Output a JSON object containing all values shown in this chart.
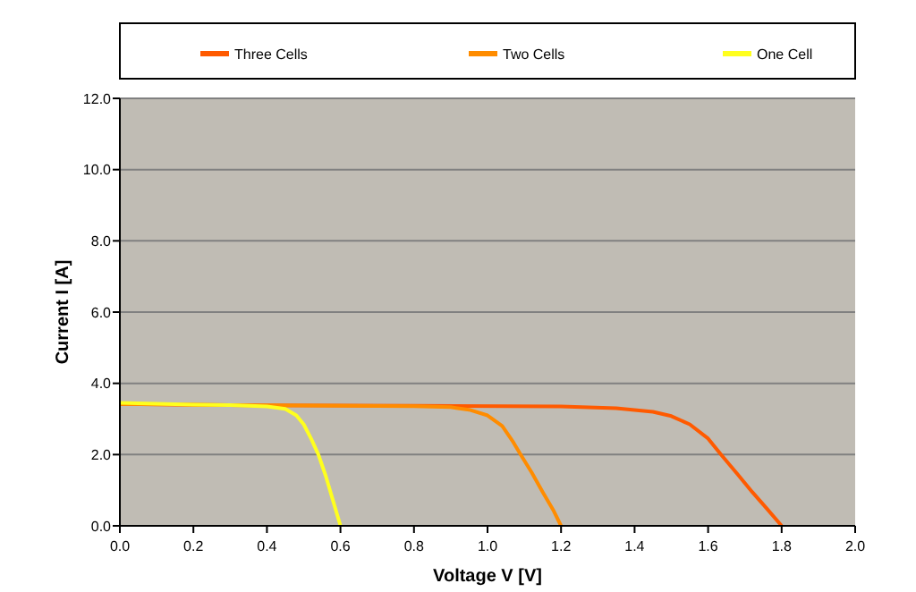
{
  "chart_data": {
    "type": "line",
    "xlabel": "Voltage V  [V]",
    "ylabel": "Current I  [A]",
    "xlim": [
      0,
      2
    ],
    "ylim": [
      0,
      12
    ],
    "xticks": [
      {
        "value": 0,
        "label": "0.0"
      },
      {
        "value": 0.2,
        "label": "0.2"
      },
      {
        "value": 0.4,
        "label": "0.4"
      },
      {
        "value": 0.6,
        "label": "0.6"
      },
      {
        "value": 0.8,
        "label": "0.8"
      },
      {
        "value": 1,
        "label": "1.0"
      },
      {
        "value": 1.2,
        "label": "1.2"
      },
      {
        "value": 1.4,
        "label": "1.4"
      },
      {
        "value": 1.6,
        "label": "1.6"
      },
      {
        "value": 1.8,
        "label": "1.8"
      },
      {
        "value": 2,
        "label": "2.0"
      }
    ],
    "yticks": [
      {
        "value": 0,
        "label": "0.0"
      },
      {
        "value": 2,
        "label": "2.0"
      },
      {
        "value": 4,
        "label": "4.0"
      },
      {
        "value": 6,
        "label": "6.0"
      },
      {
        "value": 8,
        "label": "8.0"
      },
      {
        "value": 10,
        "label": "10.0"
      },
      {
        "value": 12,
        "label": "12.0"
      }
    ],
    "grid": "y",
    "legend": "top",
    "marker": "none",
    "line_style": "solid",
    "series": [
      {
        "name": "Three Cells",
        "color": "#ff5a00",
        "x": [
          0,
          0.4,
          0.8,
          1.2,
          1.35,
          1.45,
          1.5,
          1.55,
          1.6,
          1.635,
          1.68,
          1.72,
          1.76,
          1.8
        ],
        "values": [
          3.42,
          3.38,
          3.37,
          3.35,
          3.3,
          3.2,
          3.08,
          2.85,
          2.45,
          2.0,
          1.45,
          0.95,
          0.48,
          0
        ]
      },
      {
        "name": "Two Cells",
        "color": "#ff8c00",
        "x": [
          0,
          0.4,
          0.8,
          0.9,
          0.95,
          1.0,
          1.04,
          1.07,
          1.09,
          1.12,
          1.15,
          1.18,
          1.2
        ],
        "values": [
          3.42,
          3.38,
          3.36,
          3.33,
          3.26,
          3.1,
          2.8,
          2.35,
          2.0,
          1.5,
          0.95,
          0.42,
          0
        ]
      },
      {
        "name": "One Cell",
        "color": "#ffff1e",
        "x": [
          0,
          0.2,
          0.3,
          0.4,
          0.45,
          0.48,
          0.5,
          0.52,
          0.54,
          0.56,
          0.58,
          0.6
        ],
        "values": [
          3.45,
          3.4,
          3.39,
          3.35,
          3.28,
          3.1,
          2.85,
          2.45,
          2.0,
          1.4,
          0.7,
          0
        ]
      }
    ]
  }
}
